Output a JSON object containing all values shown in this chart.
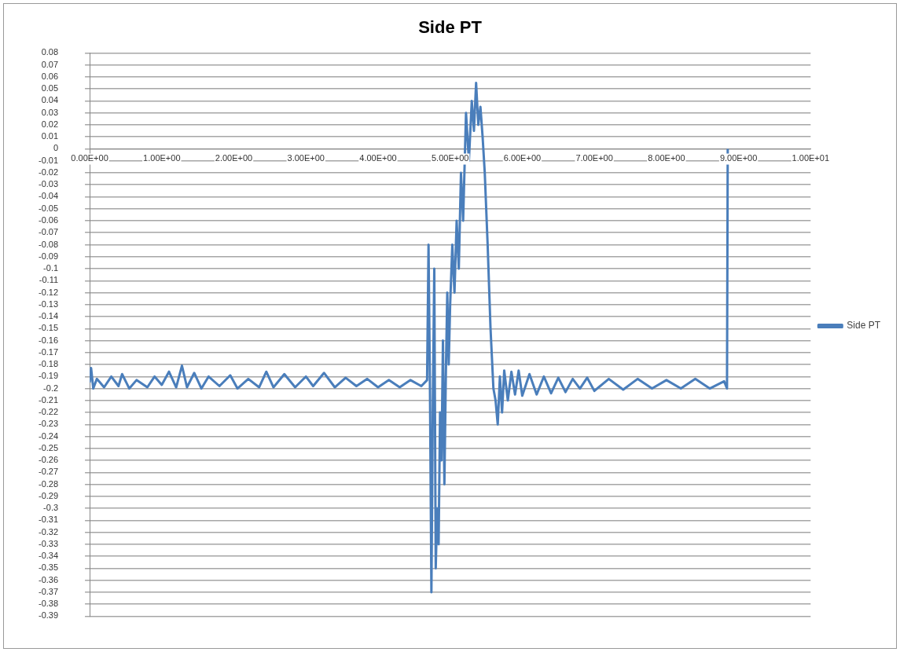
{
  "chart_data": {
    "type": "line",
    "title": "Side PT",
    "x": [
      0,
      0.02,
      0.05,
      0.1,
      0.2,
      0.3,
      0.4,
      0.45,
      0.55,
      0.65,
      0.8,
      0.9,
      1.0,
      1.1,
      1.2,
      1.28,
      1.35,
      1.45,
      1.55,
      1.65,
      1.8,
      1.95,
      2.05,
      2.2,
      2.35,
      2.45,
      2.55,
      2.7,
      2.85,
      3.0,
      3.1,
      3.25,
      3.4,
      3.55,
      3.7,
      3.85,
      4.0,
      4.15,
      4.3,
      4.45,
      4.6,
      4.68,
      4.7,
      4.72,
      4.74,
      4.76,
      4.78,
      4.8,
      4.82,
      4.84,
      4.86,
      4.88,
      4.9,
      4.92,
      4.94,
      4.96,
      4.98,
      5.0,
      5.03,
      5.06,
      5.09,
      5.12,
      5.15,
      5.18,
      5.22,
      5.26,
      5.3,
      5.33,
      5.36,
      5.39,
      5.42,
      5.45,
      5.48,
      5.52,
      5.56,
      5.6,
      5.63,
      5.66,
      5.69,
      5.72,
      5.75,
      5.8,
      5.85,
      5.9,
      5.95,
      6.0,
      6.1,
      6.2,
      6.3,
      6.4,
      6.5,
      6.6,
      6.7,
      6.8,
      6.9,
      7.0,
      7.2,
      7.4,
      7.6,
      7.8,
      8.0,
      8.2,
      8.4,
      8.6,
      8.8,
      8.84,
      8.85
    ],
    "series": [
      {
        "name": "Side PT",
        "color": "#4a7ebb",
        "values": [
          -0.195,
          -0.183,
          -0.2,
          -0.192,
          -0.199,
          -0.19,
          -0.198,
          -0.188,
          -0.2,
          -0.193,
          -0.199,
          -0.19,
          -0.197,
          -0.186,
          -0.199,
          -0.181,
          -0.199,
          -0.187,
          -0.2,
          -0.19,
          -0.198,
          -0.189,
          -0.2,
          -0.192,
          -0.199,
          -0.186,
          -0.199,
          -0.188,
          -0.199,
          -0.19,
          -0.198,
          -0.187,
          -0.199,
          -0.191,
          -0.198,
          -0.192,
          -0.199,
          -0.193,
          -0.199,
          -0.193,
          -0.198,
          -0.193,
          -0.08,
          -0.2,
          -0.37,
          -0.21,
          -0.1,
          -0.35,
          -0.3,
          -0.33,
          -0.22,
          -0.26,
          -0.16,
          -0.28,
          -0.19,
          -0.12,
          -0.18,
          -0.13,
          -0.08,
          -0.12,
          -0.06,
          -0.1,
          -0.02,
          -0.06,
          0.03,
          -0.01,
          0.04,
          0.015,
          0.055,
          0.02,
          0.035,
          0.01,
          -0.02,
          -0.08,
          -0.15,
          -0.2,
          -0.21,
          -0.23,
          -0.19,
          -0.22,
          -0.185,
          -0.21,
          -0.186,
          -0.205,
          -0.185,
          -0.206,
          -0.188,
          -0.205,
          -0.19,
          -0.204,
          -0.191,
          -0.203,
          -0.192,
          -0.2,
          -0.191,
          -0.202,
          -0.192,
          -0.201,
          -0.192,
          -0.2,
          -0.193,
          -0.2,
          -0.192,
          -0.2,
          -0.194,
          -0.2,
          0
        ]
      }
    ],
    "xlim": [
      0,
      10
    ],
    "xticks": [
      {
        "value": 0,
        "label": "0.00E+00"
      },
      {
        "value": 1,
        "label": "1.00E+00"
      },
      {
        "value": 2,
        "label": "2.00E+00"
      },
      {
        "value": 3,
        "label": "3.00E+00"
      },
      {
        "value": 4,
        "label": "4.00E+00"
      },
      {
        "value": 5,
        "label": "5.00E+00"
      },
      {
        "value": 6,
        "label": "6.00E+00"
      },
      {
        "value": 7,
        "label": "7.00E+00"
      },
      {
        "value": 8,
        "label": "8.00E+00"
      },
      {
        "value": 9,
        "label": "9.00E+00"
      },
      {
        "value": 10,
        "label": "1.00E+01"
      }
    ],
    "ylim": [
      -0.39,
      0.08
    ],
    "yticks": [
      0.08,
      0.07,
      0.06,
      0.05,
      0.04,
      0.03,
      0.02,
      0.01,
      0,
      -0.01,
      -0.02,
      -0.03,
      -0.04,
      -0.05,
      -0.06,
      -0.07,
      -0.08,
      -0.09,
      -0.1,
      -0.11,
      -0.12,
      -0.13,
      -0.14,
      -0.15,
      -0.16,
      -0.17,
      -0.18,
      -0.19,
      -0.2,
      -0.21,
      -0.22,
      -0.23,
      -0.24,
      -0.25,
      -0.26,
      -0.27,
      -0.28,
      -0.29,
      -0.3,
      -0.31,
      -0.32,
      -0.33,
      -0.34,
      -0.35,
      -0.36,
      -0.37,
      -0.38,
      -0.39
    ],
    "grid": "y",
    "legend": "right",
    "marker": "none",
    "line_style": "solid"
  }
}
